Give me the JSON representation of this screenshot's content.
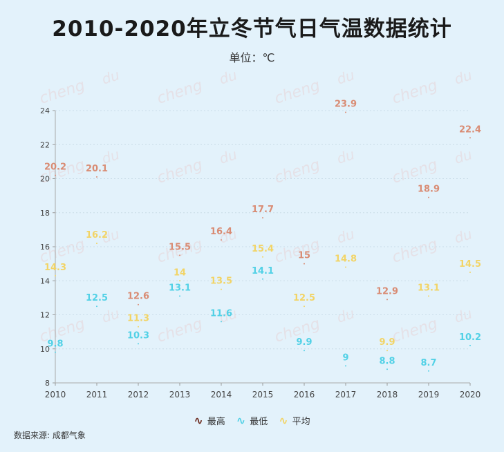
{
  "title": "2010-2020年立冬节气日气温数据统计",
  "subtitle": "单位：℃",
  "source": "数据来源: 成都气象",
  "watermark": [
    "cheng",
    "du"
  ],
  "chart_data": {
    "type": "scatter",
    "title": "2010-2020年立冬节气日气温数据统计",
    "subtitle": "单位：℃",
    "x": [
      "2010",
      "2011",
      "2012",
      "2013",
      "2014",
      "2015",
      "2016",
      "2017",
      "2018",
      "2019",
      "2020"
    ],
    "ylim": [
      8,
      24
    ],
    "yticks": [
      8,
      10,
      12,
      14,
      16,
      18,
      20,
      22,
      24
    ],
    "grid": true,
    "legend_position": "bottom",
    "series": [
      {
        "name": "最高",
        "color": "#d98c74",
        "legend_color": "#6b2a1e",
        "values": [
          20.2,
          20.1,
          12.6,
          15.5,
          16.4,
          17.7,
          15,
          23.9,
          12.9,
          18.9,
          22.4
        ]
      },
      {
        "name": "最低",
        "color": "#52d1e6",
        "legend_color": "#52d1e6",
        "values": [
          9.8,
          12.5,
          10.3,
          13.1,
          11.6,
          14.1,
          9.9,
          9,
          8.8,
          8.7,
          10.2
        ]
      },
      {
        "name": "平均",
        "color": "#f2d466",
        "legend_color": "#f2d466",
        "values": [
          14.3,
          16.2,
          11.3,
          14,
          13.5,
          15.4,
          12.5,
          14.8,
          9.9,
          13.1,
          14.5
        ]
      }
    ]
  }
}
